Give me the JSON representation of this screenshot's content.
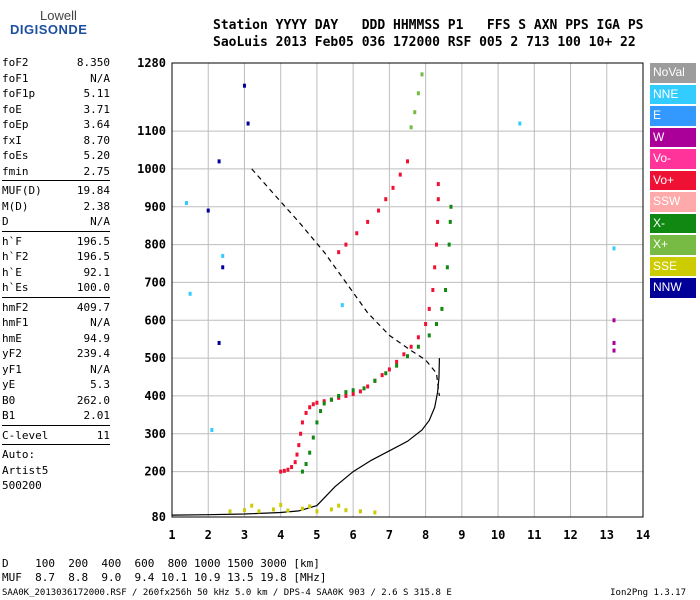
{
  "logo": {
    "line1": "Lowell",
    "line2": "DIGISONDE"
  },
  "header": {
    "line1": "Station YYYY DAY   DDD HHMMSS P1   FFS S AXN PPS IGA PS",
    "line2": "SaoLuis 2013 Feb05 036 172000 RSF 005 2 713 100 10+ 22"
  },
  "params": {
    "group1": [
      [
        "foF2",
        "8.350"
      ],
      [
        "foF1",
        "N/A"
      ],
      [
        "foF1p",
        "5.11"
      ],
      [
        "foE",
        "3.71"
      ],
      [
        "foEp",
        "3.64"
      ],
      [
        "fxI",
        "8.70"
      ],
      [
        "foEs",
        "5.20"
      ],
      [
        "fmin",
        "2.75"
      ]
    ],
    "group2": [
      [
        "MUF(D)",
        "19.84"
      ],
      [
        "M(D)",
        "2.38"
      ],
      [
        "D",
        "N/A"
      ]
    ],
    "group3": [
      [
        "h`F",
        "196.5"
      ],
      [
        "h`F2",
        "196.5"
      ],
      [
        "h`E",
        "92.1"
      ],
      [
        "h`Es",
        "100.0"
      ]
    ],
    "group4": [
      [
        "hmF2",
        "409.7"
      ],
      [
        "hmF1",
        "N/A"
      ],
      [
        "hmE",
        "94.9"
      ],
      [
        "yF2",
        "239.4"
      ],
      [
        "yF1",
        "N/A"
      ],
      [
        "yE",
        "5.3"
      ],
      [
        "B0",
        "262.0"
      ],
      [
        "B1",
        "2.01"
      ]
    ],
    "group5": [
      [
        "C-level",
        "11"
      ]
    ],
    "autoscale": [
      "Auto:",
      "Artist5",
      "500200"
    ]
  },
  "legend": [
    {
      "label": "NoVal",
      "color": "#9c9c9c"
    },
    {
      "label": "NNE",
      "color": "#33ccff"
    },
    {
      "label": "E",
      "color": "#3399ff"
    },
    {
      "label": "W",
      "color": "#aa0099"
    },
    {
      "label": "Vo-",
      "color": "#ff3399"
    },
    {
      "label": "Vo+",
      "color": "#ee1133"
    },
    {
      "label": "SSW",
      "color": "#ffaaaa"
    },
    {
      "label": "X-",
      "color": "#118811"
    },
    {
      "label": "X+",
      "color": "#77bb44"
    },
    {
      "label": "SSE",
      "color": "#cccc00"
    },
    {
      "label": "NNW",
      "color": "#000099"
    }
  ],
  "footer": {
    "line1": "D    100  200  400  600  800 1000 1500 3000 [km]",
    "line2": "MUF  8.7  8.8  9.0  9.4 10.1 10.9 13.5 19.8 [MHz]",
    "source": "SAA0K_2013036172000.RSF / 260fx256h 50 kHz 5.0 km / DPS-4 SAA0K 903 / 2.6 S 315.8 E",
    "version": "Ion2Png 1.3.17"
  },
  "chart_data": {
    "type": "scatter",
    "xlabel": "",
    "ylabel": "",
    "xlim": [
      1,
      14
    ],
    "ylim": [
      80,
      1280
    ],
    "xticks": [
      1,
      2,
      3,
      4,
      5,
      6,
      7,
      8,
      9,
      10,
      11,
      12,
      13,
      14
    ],
    "yticks": [
      80,
      200,
      300,
      400,
      500,
      600,
      700,
      800,
      900,
      1000,
      1100,
      1280
    ],
    "grid": true,
    "series": [
      {
        "name": "Vo-",
        "color": "#ee1133",
        "points": [
          [
            4.0,
            200
          ],
          [
            4.1,
            202
          ],
          [
            4.2,
            205
          ],
          [
            4.3,
            212
          ],
          [
            4.4,
            225
          ],
          [
            4.45,
            245
          ],
          [
            4.5,
            270
          ],
          [
            4.55,
            300
          ],
          [
            4.6,
            330
          ],
          [
            4.7,
            355
          ],
          [
            4.8,
            370
          ],
          [
            4.9,
            378
          ],
          [
            5.0,
            382
          ],
          [
            5.2,
            386
          ],
          [
            5.4,
            390
          ],
          [
            5.6,
            395
          ],
          [
            5.8,
            400
          ],
          [
            6.0,
            405
          ],
          [
            6.2,
            412
          ],
          [
            6.4,
            425
          ],
          [
            6.6,
            440
          ],
          [
            6.8,
            455
          ],
          [
            7.0,
            470
          ],
          [
            7.2,
            490
          ],
          [
            7.4,
            510
          ],
          [
            7.6,
            530
          ],
          [
            7.8,
            555
          ],
          [
            8.0,
            590
          ],
          [
            8.1,
            630
          ],
          [
            8.2,
            680
          ],
          [
            8.25,
            740
          ],
          [
            8.3,
            800
          ],
          [
            8.33,
            860
          ],
          [
            8.35,
            920
          ],
          [
            8.35,
            960
          ]
        ]
      },
      {
        "name": "X-",
        "color": "#118811",
        "points": [
          [
            4.6,
            200
          ],
          [
            4.7,
            220
          ],
          [
            4.8,
            250
          ],
          [
            4.9,
            290
          ],
          [
            5.0,
            330
          ],
          [
            5.1,
            360
          ],
          [
            5.2,
            380
          ],
          [
            5.4,
            390
          ],
          [
            5.6,
            400
          ],
          [
            5.8,
            410
          ],
          [
            6.0,
            415
          ],
          [
            6.3,
            420
          ],
          [
            6.6,
            440
          ],
          [
            6.9,
            460
          ],
          [
            7.2,
            480
          ],
          [
            7.5,
            505
          ],
          [
            7.8,
            530
          ],
          [
            8.1,
            560
          ],
          [
            8.3,
            590
          ],
          [
            8.45,
            630
          ],
          [
            8.55,
            680
          ],
          [
            8.6,
            740
          ],
          [
            8.65,
            800
          ],
          [
            8.68,
            860
          ],
          [
            8.7,
            900
          ]
        ]
      },
      {
        "name": "Vo+",
        "color": "#ee1133",
        "points": [
          [
            5.6,
            780
          ],
          [
            5.8,
            800
          ],
          [
            6.1,
            830
          ],
          [
            6.4,
            860
          ],
          [
            6.7,
            890
          ],
          [
            6.9,
            920
          ],
          [
            7.1,
            950
          ],
          [
            7.3,
            985
          ],
          [
            7.5,
            1020
          ]
        ]
      },
      {
        "name": "X+",
        "color": "#77bb44",
        "points": [
          [
            7.6,
            1110
          ],
          [
            7.7,
            1150
          ],
          [
            7.8,
            1200
          ],
          [
            7.9,
            1250
          ]
        ]
      },
      {
        "name": "SSE",
        "color": "#cccc00",
        "points": [
          [
            2.6,
            95
          ],
          [
            3.0,
            98
          ],
          [
            3.4,
            95
          ],
          [
            3.8,
            100
          ],
          [
            4.2,
            97
          ],
          [
            4.6,
            102
          ],
          [
            5.0,
            95
          ],
          [
            5.4,
            100
          ],
          [
            5.8,
            98
          ],
          [
            6.2,
            95
          ],
          [
            6.6,
            92
          ],
          [
            3.2,
            110
          ],
          [
            4.0,
            112
          ],
          [
            4.8,
            108
          ],
          [
            5.6,
            110
          ]
        ]
      },
      {
        "name": "NNW",
        "color": "#000099",
        "points": [
          [
            3.0,
            1220
          ],
          [
            3.1,
            1120
          ],
          [
            2.3,
            1020
          ],
          [
            2.0,
            890
          ],
          [
            2.4,
            740
          ],
          [
            2.3,
            540
          ]
        ]
      },
      {
        "name": "NNE",
        "color": "#33ccff",
        "points": [
          [
            1.4,
            910
          ],
          [
            1.5,
            670
          ],
          [
            2.4,
            770
          ],
          [
            2.1,
            310
          ],
          [
            10.6,
            1120
          ],
          [
            13.2,
            790
          ],
          [
            5.7,
            640
          ]
        ]
      },
      {
        "name": "W",
        "color": "#aa0099",
        "points": [
          [
            13.2,
            600
          ],
          [
            13.2,
            520
          ],
          [
            13.2,
            540
          ]
        ]
      }
    ],
    "profile": {
      "name": "true-height profile",
      "color": "#000000",
      "points": [
        [
          1.0,
          85
        ],
        [
          2.0,
          86
        ],
        [
          3.0,
          88
        ],
        [
          4.0,
          92
        ],
        [
          4.5,
          96
        ],
        [
          5.0,
          110
        ],
        [
          5.5,
          160
        ],
        [
          6.0,
          200
        ],
        [
          6.5,
          230
        ],
        [
          7.0,
          255
        ],
        [
          7.5,
          280
        ],
        [
          7.9,
          310
        ],
        [
          8.1,
          335
        ],
        [
          8.25,
          370
        ],
        [
          8.33,
          410
        ],
        [
          8.37,
          450
        ],
        [
          8.38,
          500
        ]
      ]
    },
    "muf_curve": {
      "name": "MUF curve",
      "color": "#000000",
      "points": [
        [
          3.2,
          1000
        ],
        [
          3.8,
          935
        ],
        [
          4.5,
          860
        ],
        [
          5.2,
          780
        ],
        [
          5.8,
          700
        ],
        [
          6.4,
          620
        ],
        [
          7.0,
          560
        ],
        [
          7.6,
          520
        ],
        [
          8.0,
          495
        ],
        [
          8.3,
          460
        ],
        [
          8.35,
          420
        ],
        [
          8.38,
          400
        ]
      ]
    }
  }
}
